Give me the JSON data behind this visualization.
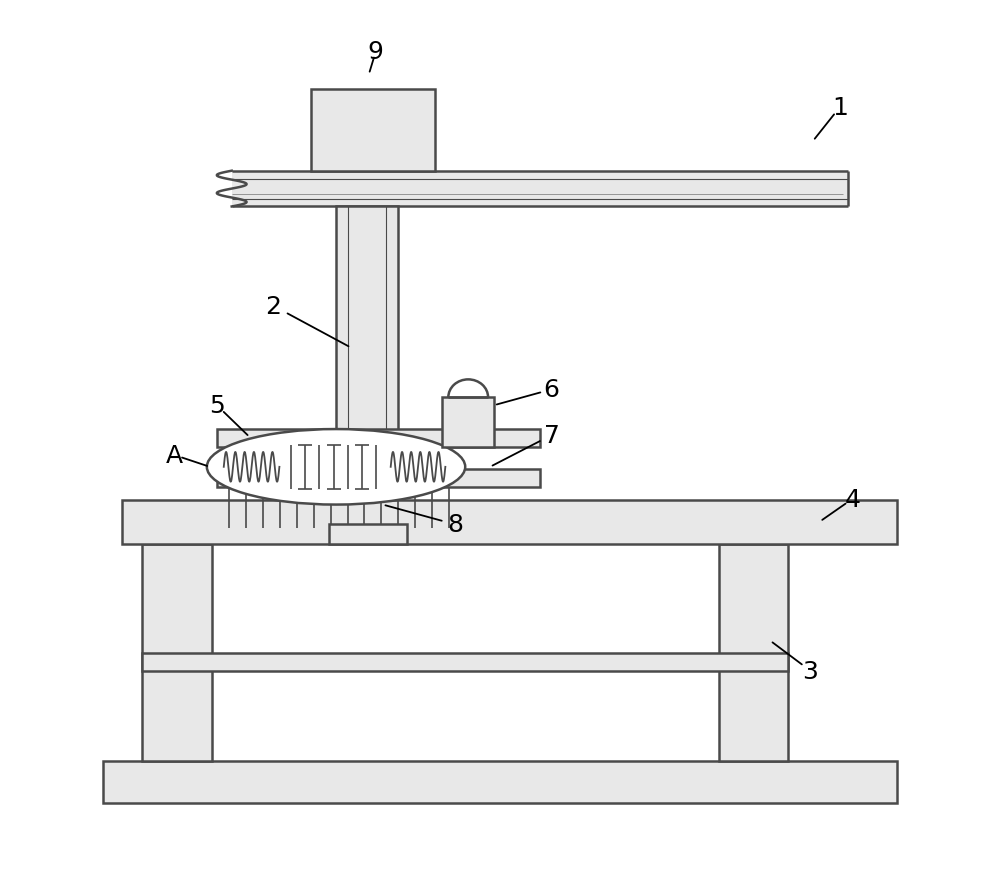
{
  "bg_color": "#ffffff",
  "line_color": "#4a4a4a",
  "line_width": 1.8,
  "fig_width": 10.0,
  "fig_height": 8.78,
  "lc": "#4a4a4a"
}
